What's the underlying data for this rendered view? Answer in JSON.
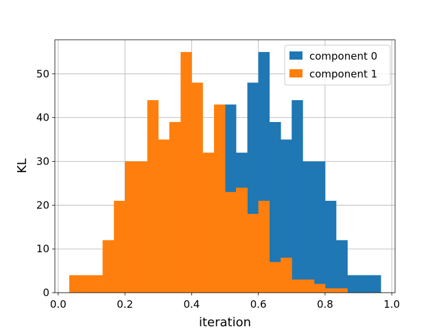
{
  "chart_data": {
    "type": "bar",
    "title": "",
    "xlabel": "iteration",
    "ylabel": "KL",
    "xlim": [
      -0.01,
      1.01
    ],
    "ylim": [
      0,
      57.8
    ],
    "xticks": [
      0.0,
      0.2,
      0.4,
      0.6,
      0.8,
      1.0
    ],
    "xtick_labels": [
      "0.0",
      "0.2",
      "0.4",
      "0.6",
      "0.8",
      "1.0"
    ],
    "yticks": [
      0,
      10,
      20,
      30,
      40,
      50
    ],
    "ytick_labels": [
      "0",
      "10",
      "20",
      "30",
      "40",
      "50"
    ],
    "grid": true,
    "legend_position": "top-right",
    "series": [
      {
        "name": "component 0",
        "color": "#1f77b4",
        "bin_edges": [
          0.5,
          0.533,
          0.567,
          0.6,
          0.633,
          0.667,
          0.7,
          0.733,
          0.767,
          0.8,
          0.833,
          0.867,
          0.9,
          0.933,
          0.967
        ],
        "counts": [
          43,
          32,
          48,
          55,
          39,
          35,
          44,
          30,
          30,
          21,
          12,
          4,
          4,
          4
        ]
      },
      {
        "name": "component 1",
        "color": "#ff7f0e",
        "bin_edges": [
          0.033,
          0.067,
          0.1,
          0.133,
          0.167,
          0.2,
          0.233,
          0.267,
          0.3,
          0.333,
          0.367,
          0.4,
          0.433,
          0.467,
          0.5,
          0.533,
          0.567,
          0.6,
          0.633,
          0.667,
          0.7,
          0.733,
          0.767,
          0.8,
          0.833,
          0.867
        ],
        "counts": [
          4,
          4,
          4,
          12,
          21,
          30,
          30,
          44,
          35,
          39,
          55,
          48,
          32,
          43,
          23,
          24,
          18,
          21,
          7,
          8,
          3,
          3,
          2,
          1,
          1
        ]
      }
    ]
  }
}
